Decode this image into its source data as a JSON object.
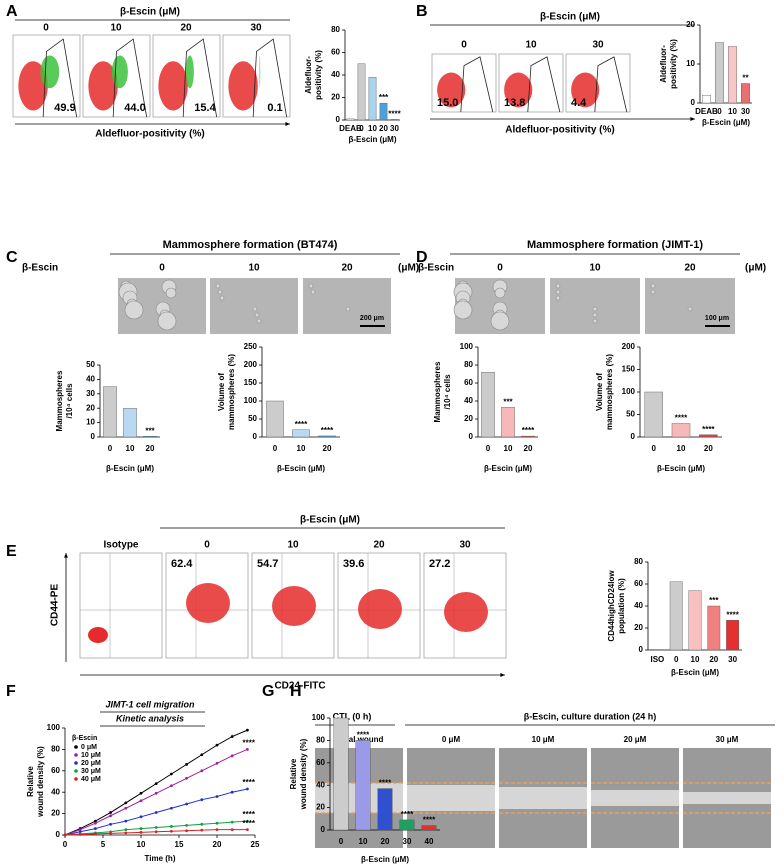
{
  "figure": {
    "labels": [
      "A",
      "B",
      "C",
      "D",
      "E",
      "F",
      "G",
      "H"
    ],
    "A": {
      "header": "β-Escin (μM)",
      "doses": [
        "0",
        "10",
        "20",
        "30"
      ],
      "gates": [
        "49.9",
        "44.0",
        "15.4",
        "0.1"
      ],
      "axis": "Aldefluor-positivity (%)"
    },
    "B": {
      "header": "β-Escin (μM)",
      "doses": [
        "0",
        "10",
        "30"
      ],
      "gates": [
        "15.0",
        "13.8",
        "4.4"
      ],
      "axis": "Aldefluor-positivity (%)"
    },
    "C": {
      "title": "Mammosphere formation (BT474)",
      "row_label": "β-Escin",
      "doses": [
        "0",
        "10",
        "20"
      ],
      "unit": "(μM)",
      "scale_bar": "200 μm"
    },
    "D": {
      "title": "Mammosphere formation (JIMT-1)",
      "row_label": "β-Escin",
      "doses": [
        "0",
        "10",
        "20"
      ],
      "unit": "(μM)",
      "scale_bar": "100 μm"
    },
    "E": {
      "header": "β-Escin (μM)",
      "control": "Isotype",
      "doses": [
        "0",
        "10",
        "20",
        "30"
      ],
      "gates": [
        "62.4",
        "54.7",
        "39.6",
        "27.2"
      ],
      "y_axis": "CD44-PE",
      "x_axis": "CD24-FITC"
    },
    "H": {
      "control_header": "CTL (0 h)",
      "header": "β-Escin, culture duration (24 h)",
      "control": "Initial wound",
      "doses": [
        "0 μM",
        "10 μM",
        "20 μM",
        "30 μM"
      ]
    }
  },
  "chart_data": [
    {
      "type": "bar",
      "ylabel": [
        "Aldefluor-",
        "positivity (%)"
      ],
      "xlabel": "β-Escin (μM)",
      "categories": [
        "DEAB",
        "0",
        "10",
        "20",
        "30"
      ],
      "values": [
        1,
        50,
        38,
        15,
        0.5
      ],
      "colors": [
        "#ffffff",
        "#cccccc",
        "#a9d4ef",
        "#4f9fd8",
        "#2e8b8b"
      ],
      "annotations": [
        null,
        null,
        null,
        "***",
        "****"
      ],
      "ylim": [
        0,
        80
      ],
      "yticks": [
        0,
        20,
        40,
        60,
        80
      ]
    },
    {
      "type": "bar",
      "ylabel": [
        "Aldefluor-",
        "positivity (%)"
      ],
      "xlabel": "β-Escin (μM)",
      "categories": [
        "DEAB",
        "0",
        "10",
        "30"
      ],
      "values": [
        2,
        15.5,
        14.5,
        5
      ],
      "colors": [
        "#ffffff",
        "#cccccc",
        "#f7c6c6",
        "#e87070"
      ],
      "annotations": [
        null,
        null,
        null,
        "**"
      ],
      "ylim": [
        0,
        20
      ],
      "yticks": [
        0,
        10,
        20
      ]
    },
    {
      "type": "bar",
      "ylabel": [
        "Mammospheres",
        "/10⁴ cells"
      ],
      "xlabel": "β-Escin (μM)",
      "categories": [
        "0",
        "10",
        "20"
      ],
      "values": [
        35,
        20,
        0.5
      ],
      "colors": [
        "#cccccc",
        "#b9d9f2",
        "#4f9fd8"
      ],
      "annotations": [
        null,
        null,
        "***"
      ],
      "ylim": [
        0,
        50
      ],
      "yticks": [
        0,
        10,
        20,
        30,
        40,
        50
      ]
    },
    {
      "type": "bar",
      "ylabel": [
        "Volume of",
        "mammospheres (%)"
      ],
      "xlabel": "β-Escin (μM)",
      "categories": [
        "0",
        "10",
        "20"
      ],
      "values": [
        100,
        20,
        3
      ],
      "colors": [
        "#cccccc",
        "#b9d9f2",
        "#4f9fd8"
      ],
      "annotations": [
        null,
        "****",
        "****"
      ],
      "ylim": [
        0,
        250
      ],
      "yticks": [
        0,
        50,
        100,
        150,
        200,
        250
      ]
    },
    {
      "type": "bar",
      "ylabel": [
        "Mammospheres",
        "/10⁴ cells"
      ],
      "xlabel": "β-Escin (μM)",
      "categories": [
        "0",
        "10",
        "20"
      ],
      "values": [
        72,
        33,
        1
      ],
      "colors": [
        "#cccccc",
        "#f6b8b8",
        "#e04040"
      ],
      "annotations": [
        null,
        "***",
        "****"
      ],
      "ylim": [
        0,
        100
      ],
      "yticks": [
        0,
        20,
        40,
        60,
        80,
        100
      ]
    },
    {
      "type": "bar",
      "ylabel": [
        "Volume of",
        "mammospheres (%)"
      ],
      "xlabel": "β-Escin (μM)",
      "categories": [
        "0",
        "10",
        "20"
      ],
      "values": [
        100,
        30,
        5
      ],
      "colors": [
        "#cccccc",
        "#f6b8b8",
        "#e04040"
      ],
      "annotations": [
        null,
        "****",
        "****"
      ],
      "ylim": [
        0,
        200
      ],
      "yticks": [
        0,
        50,
        100,
        150,
        200
      ]
    },
    {
      "type": "bar",
      "ylabel": [
        "CD44highCD24low",
        "population (%)"
      ],
      "xlabel": "β-Escin (μM)",
      "categories": [
        "ISO",
        "0",
        "10",
        "20",
        "30"
      ],
      "values": [
        0.5,
        62,
        54,
        40,
        27
      ],
      "colors": [
        "#ffffff",
        "#cccccc",
        "#f9c0c0",
        "#f08080",
        "#e53030"
      ],
      "annotations": [
        null,
        null,
        null,
        "***",
        "****"
      ],
      "ylim": [
        0,
        80
      ],
      "yticks": [
        0,
        20,
        40,
        60,
        80
      ]
    },
    {
      "type": "line",
      "title": "JIMT-1 cell migration",
      "subtitle": "Kinetic analysis",
      "legend_title": "β-Escin",
      "xlabel": "Time (h)",
      "ylabel": [
        "Relative",
        "wound density (%)"
      ],
      "x": [
        0,
        2,
        4,
        6,
        8,
        10,
        12,
        14,
        16,
        18,
        20,
        22,
        24
      ],
      "xlim": [
        0,
        25
      ],
      "xticks": [
        0,
        5,
        10,
        15,
        20,
        25
      ],
      "ylim": [
        0,
        100
      ],
      "yticks": [
        0,
        20,
        40,
        60,
        80,
        100
      ],
      "series": [
        {
          "name": "0 μM",
          "color": "#000000",
          "values": [
            0,
            6,
            13,
            21,
            30,
            39,
            48,
            57,
            66,
            75,
            84,
            92,
            98
          ]
        },
        {
          "name": "10 μM",
          "color": "#a020a0",
          "annotation": "****",
          "values": [
            0,
            5,
            11,
            18,
            25,
            32,
            39,
            46,
            53,
            60,
            67,
            74,
            80
          ]
        },
        {
          "name": "20 μM",
          "color": "#2030d0",
          "annotation": "****",
          "values": [
            0,
            3,
            6,
            10,
            13,
            17,
            21,
            25,
            29,
            33,
            36,
            40,
            43
          ]
        },
        {
          "name": "30 μM",
          "color": "#10a040",
          "annotation": "****",
          "values": [
            0,
            1,
            2,
            3,
            5,
            6,
            7,
            8,
            9,
            10,
            11,
            12,
            13
          ]
        },
        {
          "name": "40 μM",
          "color": "#e02020",
          "annotation": "****",
          "values": [
            0,
            0.5,
            1,
            1.5,
            2,
            2.5,
            3,
            3.5,
            4,
            4.5,
            5,
            5,
            5
          ]
        }
      ]
    },
    {
      "type": "bar",
      "ylabel": [
        "Relative",
        "wound density (%)"
      ],
      "xlabel": "β-Escin (μM)",
      "categories": [
        "0",
        "10",
        "20",
        "30",
        "40"
      ],
      "values": [
        100,
        80,
        37,
        9,
        4
      ],
      "colors": [
        "#cccccc",
        "#9a9ae8",
        "#3050d0",
        "#20a060",
        "#e03030"
      ],
      "annotations": [
        null,
        "****",
        "****",
        "****",
        "****"
      ],
      "ylim": [
        0,
        100
      ],
      "yticks": [
        0,
        20,
        40,
        60,
        80,
        100
      ]
    }
  ]
}
